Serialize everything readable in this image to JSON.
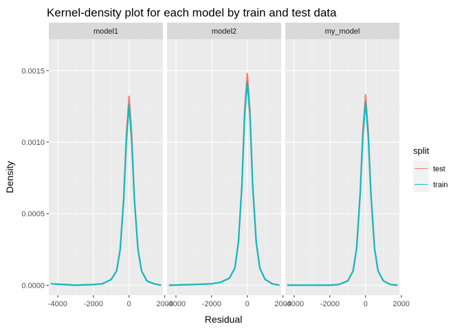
{
  "chart_data": {
    "type": "line",
    "title": "Kernel-density plot for each model by train and test data",
    "xlabel": "Residual",
    "ylabel": "Density",
    "xlim": [
      -4500,
      1900
    ],
    "ylim": [
      -7e-05,
      0.00172
    ],
    "x_ticks": [
      -4000,
      -2000,
      0,
      2000
    ],
    "x_tick_labels": [
      "-4000",
      "-2000",
      "0",
      "2000"
    ],
    "y_ticks": [
      0,
      0.0005,
      0.001,
      0.0015
    ],
    "y_tick_labels": [
      "0.0000",
      "0.0005",
      "0.0010",
      "0.0015"
    ],
    "grid": true,
    "legend": {
      "title": "split",
      "position": "right",
      "entries": [
        {
          "label": "test",
          "color": "#F8766D"
        },
        {
          "label": "train",
          "color": "#00BFC4"
        }
      ]
    },
    "facets": [
      {
        "label": "model1",
        "series": [
          {
            "name": "test",
            "x": [
              -4400,
              -3000,
              -2000,
              -1500,
              -1000,
              -700,
              -500,
              -300,
              -150,
              0,
              150,
              300,
              500,
              700,
              1000,
              1400,
              1800
            ],
            "y": [
              1e-05,
              0,
              5e-06,
              1e-05,
              4e-05,
              0.0001,
              0.00025,
              0.0006,
              0.00105,
              0.00132,
              0.00105,
              0.0006,
              0.00025,
              0.0001,
              3e-05,
              1e-05,
              0
            ]
          },
          {
            "name": "train",
            "x": [
              -4400,
              -3000,
              -2000,
              -1500,
              -1000,
              -700,
              -500,
              -300,
              -150,
              0,
              150,
              300,
              500,
              700,
              1000,
              1400,
              1800
            ],
            "y": [
              1e-05,
              0,
              5e-06,
              1e-05,
              4e-05,
              0.0001,
              0.00025,
              0.0006,
              0.001,
              0.00126,
              0.001,
              0.0006,
              0.00025,
              0.0001,
              3e-05,
              1e-05,
              0
            ]
          }
        ]
      },
      {
        "label": "model2",
        "series": [
          {
            "name": "test",
            "x": [
              -4400,
              -3000,
              -2000,
              -1500,
              -1000,
              -700,
              -500,
              -300,
              -150,
              0,
              150,
              300,
              500,
              700,
              1000,
              1400,
              1800
            ],
            "y": [
              0,
              5e-06,
              1e-05,
              2e-05,
              5e-05,
              0.00012,
              0.0003,
              0.0007,
              0.00122,
              0.00148,
              0.00122,
              0.0007,
              0.0003,
              0.00012,
              4e-05,
              1e-05,
              0
            ]
          },
          {
            "name": "train",
            "x": [
              -4400,
              -3000,
              -2000,
              -1500,
              -1000,
              -700,
              -500,
              -300,
              -150,
              0,
              150,
              300,
              500,
              700,
              1000,
              1400,
              1800
            ],
            "y": [
              0,
              5e-06,
              1e-05,
              2e-05,
              5e-05,
              0.00012,
              0.0003,
              0.0007,
              0.00118,
              0.00142,
              0.00118,
              0.0007,
              0.0003,
              0.00012,
              4e-05,
              1e-05,
              0
            ]
          }
        ]
      },
      {
        "label": "my_model",
        "series": [
          {
            "name": "test",
            "x": [
              -4400,
              -3000,
              -2000,
              -1500,
              -1000,
              -700,
              -500,
              -300,
              -150,
              0,
              150,
              300,
              500,
              700,
              1000,
              1400,
              1800
            ],
            "y": [
              0,
              0,
              0,
              5e-06,
              3e-05,
              0.0001,
              0.00026,
              0.00064,
              0.00108,
              0.00133,
              0.00108,
              0.00064,
              0.00026,
              0.0001,
              3e-05,
              5e-06,
              0
            ]
          },
          {
            "name": "train",
            "x": [
              -4400,
              -3000,
              -2000,
              -1500,
              -1000,
              -700,
              -500,
              -300,
              -150,
              0,
              150,
              300,
              500,
              700,
              1000,
              1400,
              1800
            ],
            "y": [
              0,
              0,
              0,
              5e-06,
              3e-05,
              0.0001,
              0.00026,
              0.00064,
              0.00104,
              0.00128,
              0.00104,
              0.00064,
              0.00026,
              0.0001,
              3e-05,
              5e-06,
              0
            ]
          }
        ]
      }
    ]
  }
}
